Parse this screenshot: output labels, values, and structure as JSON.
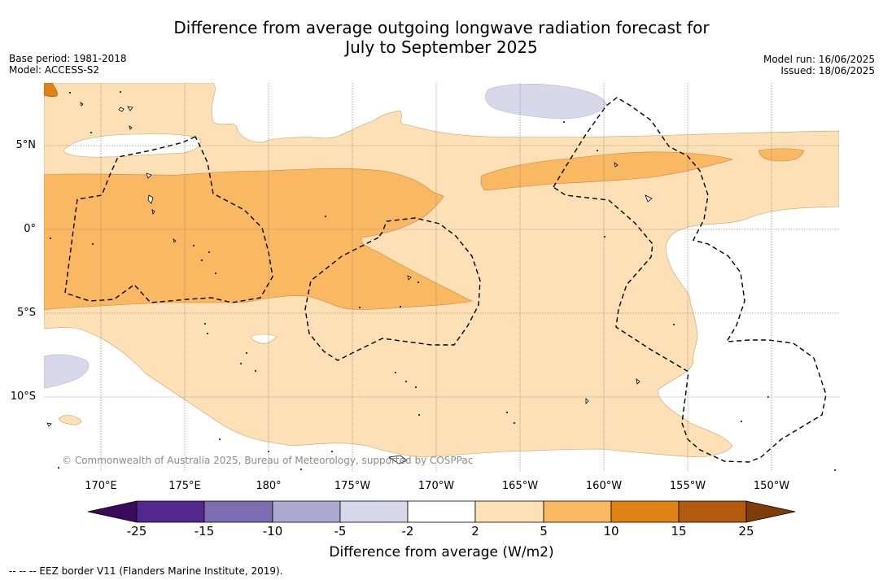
{
  "title": {
    "line1": "Difference from average outgoing longwave radiation forecast for",
    "line2": "July to September 2025"
  },
  "meta_left": {
    "base_period": "Base period: 1981-2018",
    "model": "Model: ACCESS-S2"
  },
  "meta_right": {
    "model_run": "Model run: 16/06/2025",
    "issued": "Issued: 18/06/2025"
  },
  "map": {
    "latitude_labels": [
      "5°N",
      "0°",
      "5°S",
      "10°S"
    ],
    "longitude_labels": [
      "170°E",
      "175°E",
      "180°",
      "175°W",
      "170°W",
      "165°W",
      "160°W",
      "155°W",
      "150°W"
    ],
    "copyright": "© Commonwealth of Australia 2025, Bureau of Meteorology, supported by COSPPac"
  },
  "colorbar": {
    "ticks": [
      "-25",
      "-15",
      "-10",
      "-5",
      "-2",
      "2",
      "5",
      "10",
      "15",
      "25"
    ],
    "colors": [
      "#3b0a5c",
      "#54278f",
      "#7b6db0",
      "#ada8d2",
      "#d8d8ea",
      "#ffffff",
      "#fde0b6",
      "#fbb863",
      "#e08216",
      "#b25a0e",
      "#7f3b08"
    ],
    "label": "Difference from average (W/m2)"
  },
  "legend_note": "--  --  -- EEZ border V11 (Flanders Marine Institute, 2019)."
}
